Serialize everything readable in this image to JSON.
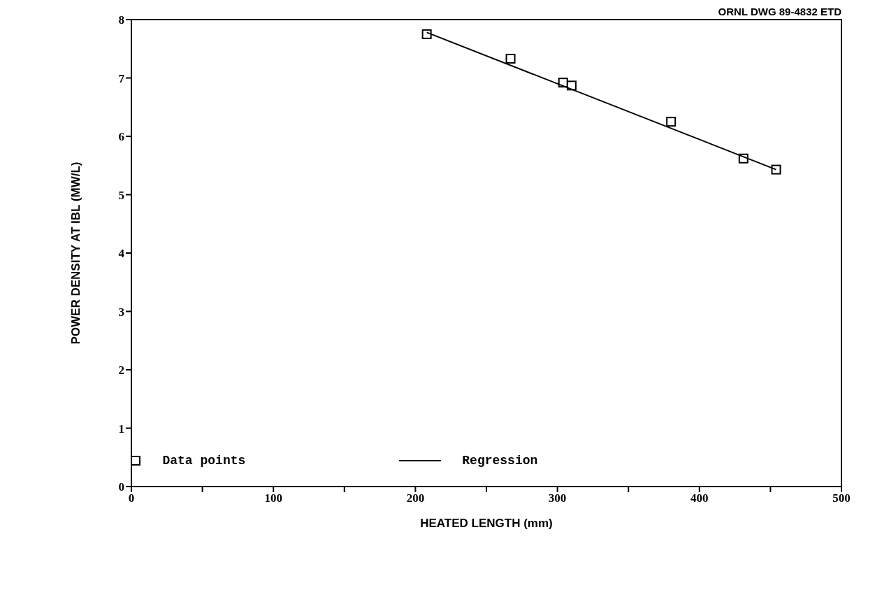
{
  "chart_data": {
    "type": "scatter",
    "xlabel": "HEATED LENGTH (mm)",
    "ylabel": "POWER DENSITY AT IBL (MW/L)",
    "annotations": [
      "ORNL DWG 89-4832 ETD"
    ],
    "xlim": [
      0,
      500
    ],
    "xticks": [
      0,
      {
        "value": 50,
        "label": null
      },
      100,
      {
        "value": 150,
        "label": null
      },
      200,
      {
        "value": 250,
        "label": null
      },
      300,
      {
        "value": 350,
        "label": null
      },
      400,
      {
        "value": 450,
        "label": null
      },
      500
    ],
    "ylim": [
      0,
      8
    ],
    "yticks": [
      0,
      1,
      2,
      3,
      4,
      5,
      6,
      7,
      8
    ],
    "grid": false,
    "legend": "bottom left",
    "series": [
      {
        "name": "Data points",
        "marker": "square",
        "color": "#000000",
        "x": [
          208,
          267,
          304,
          310,
          380,
          431,
          454
        ],
        "values": [
          7.75,
          7.33,
          6.92,
          6.87,
          6.25,
          5.62,
          5.43
        ]
      },
      {
        "name": "Regression",
        "type": "line",
        "marker": "none",
        "color": "#000000",
        "x": [
          208,
          454
        ],
        "values": [
          7.78,
          5.43
        ]
      }
    ]
  }
}
